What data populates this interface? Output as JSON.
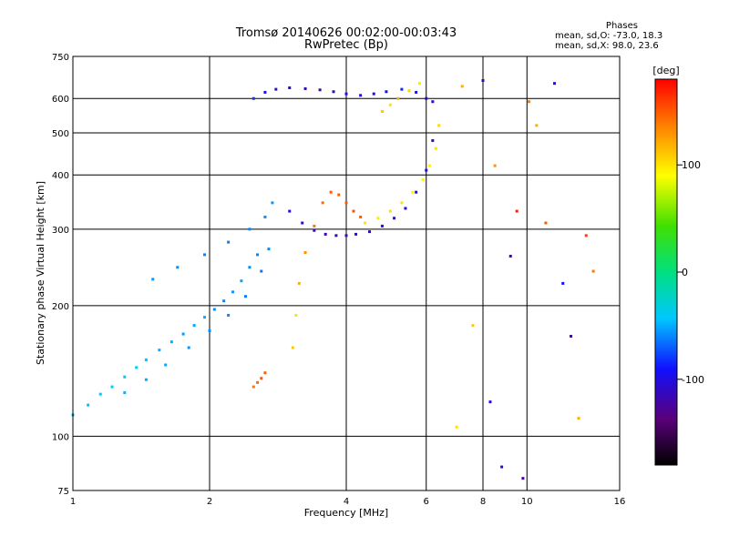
{
  "header": {
    "title_line1": "Tromsø 20140626 00:02:00-00:03:43",
    "title_line2": "RwPretec (Bp)",
    "phases_label": "Phases",
    "stats_o": "mean, sd,O: -73.0, 18.3",
    "stats_x": "mean, sd,X:  98.0, 23.6"
  },
  "chart_data": {
    "type": "scatter",
    "xlabel": "Frequency [MHz]",
    "ylabel": "Stationary phase Virtual Height [km]",
    "x_scale": "log",
    "y_scale": "log",
    "xlim": [
      1,
      16
    ],
    "ylim": [
      75,
      750
    ],
    "xticks": [
      "1",
      "2",
      "4",
      "6",
      "8",
      "10",
      "16"
    ],
    "yticks": [
      "75",
      "100",
      "200",
      "300",
      "400",
      "500",
      "600",
      "750"
    ],
    "grid_x": [
      2,
      4,
      6,
      8,
      10
    ],
    "grid_y": [
      100,
      200,
      300,
      400,
      500,
      600
    ],
    "colorbar": {
      "label": "[deg]",
      "ticks": [
        "100",
        "0",
        "-100"
      ],
      "range": [
        -180,
        180
      ]
    },
    "series": [
      {
        "x": [
          1.0,
          1.08,
          1.15,
          1.22,
          1.3,
          1.38,
          1.45,
          1.55,
          1.65,
          1.75,
          1.85,
          1.95,
          2.05,
          2.15,
          2.25,
          2.35,
          2.45,
          2.55
        ],
        "y": [
          112,
          118,
          125,
          130,
          137,
          144,
          150,
          158,
          165,
          172,
          180,
          188,
          196,
          205,
          215,
          228,
          245,
          262
        ],
        "phase": [
          -50,
          -45,
          -40,
          -42,
          -38,
          -40,
          -45,
          -48,
          -50,
          -55,
          -52,
          -50,
          -58,
          -60,
          -55,
          -52,
          -58,
          -60
        ]
      },
      {
        "x": [
          1.3,
          1.45,
          1.6,
          1.8,
          2.0,
          2.2,
          2.4,
          2.6,
          2.7
        ],
        "y": [
          126,
          135,
          146,
          160,
          175,
          190,
          210,
          240,
          270
        ],
        "phase": [
          -48,
          -50,
          -52,
          -56,
          -58,
          -60,
          -62,
          -64,
          -60
        ]
      },
      {
        "x": [
          1.5,
          1.7,
          1.95,
          2.2,
          2.45,
          2.65,
          2.75
        ],
        "y": [
          230,
          245,
          262,
          280,
          300,
          320,
          345
        ],
        "phase": [
          -55,
          -58,
          -60,
          -62,
          -60,
          -58,
          -55
        ]
      },
      {
        "x": [
          2.5,
          2.65,
          2.8,
          3.0,
          3.25,
          3.5,
          3.75,
          4.0,
          4.3,
          4.6,
          4.9,
          5.3,
          5.7,
          6.0,
          6.2
        ],
        "y": [
          600,
          620,
          630,
          635,
          632,
          628,
          622,
          615,
          610,
          615,
          622,
          630,
          620,
          600,
          590
        ],
        "phase": [
          -80,
          -95,
          -105,
          -110,
          -115,
          -118,
          -110,
          -105,
          -100,
          -95,
          -90,
          -85,
          -95,
          -110,
          -100
        ]
      },
      {
        "x": [
          3.0,
          3.2,
          3.4,
          3.6,
          3.8,
          4.0,
          4.2,
          4.5,
          4.8,
          5.1,
          5.4,
          5.7,
          6.0,
          6.2
        ],
        "y": [
          330,
          310,
          298,
          292,
          290,
          290,
          292,
          296,
          305,
          318,
          335,
          365,
          410,
          480
        ],
        "phase": [
          -100,
          -110,
          -115,
          -118,
          -115,
          -112,
          -110,
          -108,
          -105,
          -105,
          -102,
          -100,
          -100,
          -105
        ]
      },
      {
        "x": [
          3.05,
          3.1,
          3.15,
          3.25,
          3.4,
          3.55,
          3.7,
          3.85,
          4.0,
          4.15,
          4.3
        ],
        "y": [
          160,
          190,
          225,
          265,
          305,
          345,
          365,
          360,
          345,
          330,
          320
        ],
        "phase": [
          110,
          100,
          120,
          130,
          140,
          145,
          150,
          148,
          150,
          152,
          150
        ]
      },
      {
        "x": [
          4.4,
          4.7,
          5.0,
          5.3,
          5.6,
          5.9,
          6.1,
          6.3,
          6.4
        ],
        "y": [
          310,
          318,
          330,
          345,
          365,
          390,
          420,
          460,
          520
        ],
        "phase": [
          100,
          98,
          102,
          100,
          95,
          92,
          96,
          100,
          105
        ]
      },
      {
        "x": [
          2.5,
          2.55,
          2.6,
          2.65
        ],
        "y": [
          130,
          133,
          136,
          140
        ],
        "phase": [
          140,
          145,
          150,
          148
        ]
      },
      {
        "x": [
          4.8,
          5.0,
          5.2,
          5.5,
          5.8
        ],
        "y": [
          560,
          580,
          600,
          625,
          650
        ],
        "phase": [
          110,
          100,
          120,
          105,
          98
        ]
      },
      {
        "x": [
          7.2,
          8.0,
          8.5,
          9.2,
          10.1,
          11.0,
          12.0,
          13.5,
          7.6,
          8.3,
          9.5,
          10.5,
          12.5,
          14.0,
          7.0,
          8.8,
          9.8,
          11.5,
          13.0
        ],
        "y": [
          640,
          660,
          420,
          260,
          590,
          310,
          225,
          290,
          180,
          120,
          330,
          520,
          170,
          240,
          105,
          85,
          80,
          650,
          110
        ],
        "phase": [
          120,
          -110,
          130,
          -120,
          140,
          150,
          -90,
          160,
          110,
          -100,
          170,
          120,
          -120,
          140,
          100,
          -110,
          -120,
          -100,
          120
        ]
      }
    ]
  }
}
